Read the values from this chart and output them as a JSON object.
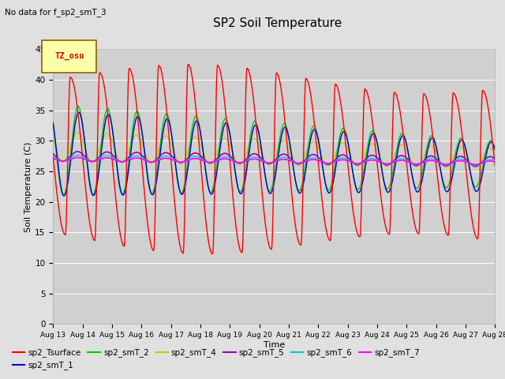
{
  "title": "SP2 Soil Temperature",
  "subtitle": "No data for f_sp2_smT_3",
  "xlabel": "Time",
  "ylabel": "Soil Temperature (C)",
  "tz_label": "TZ_osu",
  "ylim": [
    0,
    45
  ],
  "yticks": [
    0,
    5,
    10,
    15,
    20,
    25,
    30,
    35,
    40,
    45
  ],
  "x_tick_labels": [
    "Aug 13",
    "Aug 14",
    "Aug 15",
    "Aug 16",
    "Aug 17",
    "Aug 18",
    "Aug 19",
    "Aug 20",
    "Aug 21",
    "Aug 22",
    "Aug 23",
    "Aug 24",
    "Aug 25",
    "Aug 26",
    "Aug 27",
    "Aug 28"
  ],
  "bg_color": "#e0e0e0",
  "plot_bg_color": "#d0d0d0",
  "grid_color": "#ffffff",
  "series_colors": {
    "sp2_Tsurface": "#ff0000",
    "sp2_smT_1": "#0000cc",
    "sp2_smT_2": "#00cc00",
    "sp2_smT_4": "#cccc00",
    "sp2_smT_5": "#9900bb",
    "sp2_smT_6": "#00cccc",
    "sp2_smT_7": "#ff00ff"
  },
  "legend_entries": [
    "sp2_Tsurface",
    "sp2_smT_1",
    "sp2_smT_2",
    "sp2_smT_4",
    "sp2_smT_5",
    "sp2_smT_6",
    "sp2_smT_7"
  ]
}
